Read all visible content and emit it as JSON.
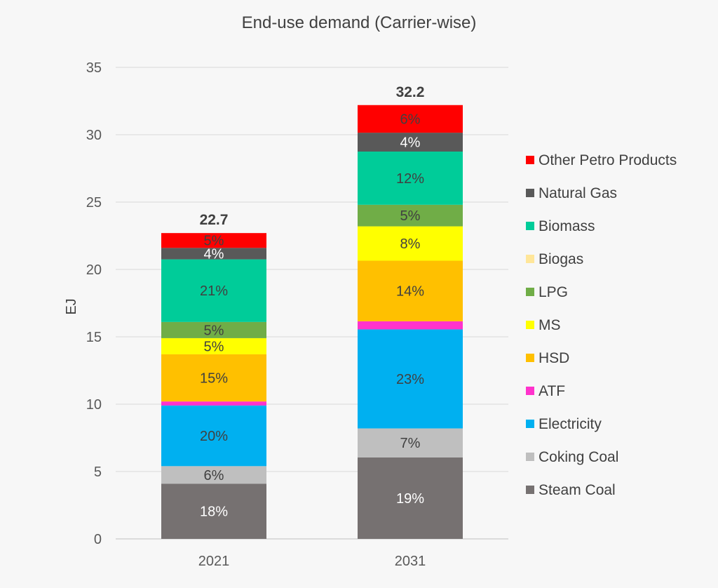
{
  "chart_data": {
    "type": "bar",
    "stacked": true,
    "title": "End-use demand (Carrier-wise)",
    "ylabel": "EJ",
    "xlabel": "",
    "ylim": [
      0,
      35
    ],
    "yticks": [
      "0",
      "5",
      "10",
      "15",
      "20",
      "25",
      "30",
      "35"
    ],
    "grid": true,
    "legend_position": "right",
    "categories": [
      "2021",
      "2031"
    ],
    "totals": [
      "22.7",
      "32.2"
    ],
    "series": [
      {
        "name": "Steam Coal",
        "color": "#767171",
        "values": [
          4.1,
          6.05
        ],
        "labels": [
          "18%",
          "19%"
        ],
        "label_color": "#ffffff"
      },
      {
        "name": "Coking Coal",
        "color": "#bfbfbf",
        "values": [
          1.3,
          2.15
        ],
        "labels": [
          "6%",
          "7%"
        ],
        "label_color": "#404040"
      },
      {
        "name": "Electricity",
        "color": "#00b0f0",
        "values": [
          4.5,
          7.35
        ],
        "labels": [
          "20%",
          "23%"
        ],
        "label_color": "#404040"
      },
      {
        "name": "ATF",
        "color": "#ff33cc",
        "values": [
          0.3,
          0.6
        ],
        "labels": [
          "",
          ""
        ],
        "label_color": "#404040"
      },
      {
        "name": "HSD",
        "color": "#ffc000",
        "values": [
          3.5,
          4.5
        ],
        "labels": [
          "15%",
          "14%"
        ],
        "label_color": "#404040"
      },
      {
        "name": "MS",
        "color": "#ffff00",
        "values": [
          1.2,
          2.55
        ],
        "labels": [
          "5%",
          "8%"
        ],
        "label_color": "#404040"
      },
      {
        "name": "LPG",
        "color": "#70ad47",
        "values": [
          1.2,
          1.6
        ],
        "labels": [
          "5%",
          "5%"
        ],
        "label_color": "#404040"
      },
      {
        "name": "Biogas",
        "color": "#ffe699",
        "values": [
          0.0,
          0.0
        ],
        "labels": [
          "",
          ""
        ],
        "label_color": "#404040"
      },
      {
        "name": "Biomass",
        "color": "#00cc99",
        "values": [
          4.65,
          3.95
        ],
        "labels": [
          "21%",
          "12%"
        ],
        "label_color": "#404040"
      },
      {
        "name": "Natural Gas",
        "color": "#595959",
        "values": [
          0.85,
          1.4
        ],
        "labels": [
          "4%",
          "4%"
        ],
        "label_color": "#ffffff"
      },
      {
        "name": "Other Petro Products",
        "color": "#ff0000",
        "values": [
          1.1,
          2.05
        ],
        "labels": [
          "5%",
          "6%"
        ],
        "label_color": "#404040"
      }
    ]
  }
}
